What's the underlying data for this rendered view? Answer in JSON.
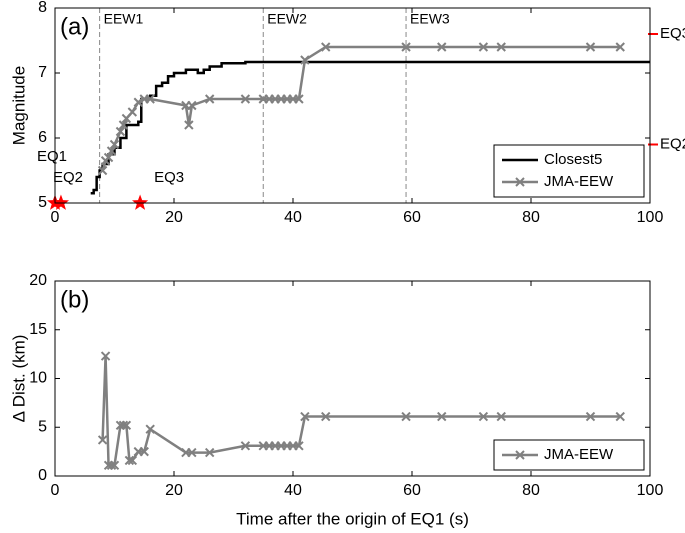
{
  "chart_data": [
    {
      "type": "line",
      "panel_label": "(a)",
      "ylabel": "Magnitude",
      "xlim": [
        0,
        100
      ],
      "xticks": [
        0,
        20,
        40,
        60,
        80,
        100
      ],
      "ylim": [
        5,
        8
      ],
      "yticks": [
        5,
        6,
        7,
        8
      ],
      "legend": "lower right",
      "series": [
        {
          "name": "Closest5",
          "color": "#000000",
          "marker": "none",
          "step": true,
          "x": [
            6,
            6.5,
            7,
            7.5,
            8,
            9,
            10,
            11,
            12,
            14,
            14.5,
            16,
            17,
            18,
            19,
            20,
            22,
            24,
            25,
            26,
            28,
            32,
            100
          ],
          "values": [
            5.15,
            5.2,
            5.4,
            5.5,
            5.6,
            5.75,
            5.85,
            6.0,
            6.2,
            6.25,
            6.6,
            6.65,
            6.8,
            6.85,
            6.95,
            7.0,
            7.05,
            7.0,
            7.05,
            7.1,
            7.15,
            7.17,
            7.17
          ]
        },
        {
          "name": "JMA-EEW",
          "color": "#808080",
          "marker": "x",
          "step": false,
          "x": [
            8,
            8.5,
            9,
            9.5,
            10,
            11,
            11.5,
            12,
            13,
            14,
            15,
            16,
            22,
            22.5,
            23,
            26,
            32,
            35,
            36,
            37,
            38,
            39,
            40,
            41,
            42,
            45.5,
            59,
            65,
            72,
            75,
            90,
            95
          ],
          "values": [
            5.5,
            5.65,
            5.7,
            5.8,
            5.9,
            6.1,
            6.2,
            6.3,
            6.4,
            6.55,
            6.6,
            6.6,
            6.5,
            6.2,
            6.5,
            6.6,
            6.6,
            6.6,
            6.6,
            6.6,
            6.6,
            6.6,
            6.6,
            6.6,
            7.2,
            7.4,
            7.4,
            7.4,
            7.4,
            7.4,
            7.4,
            7.4
          ]
        }
      ],
      "vlines": [
        {
          "label": "EEW1",
          "x": 7.5
        },
        {
          "label": "EEW2",
          "x": 35
        },
        {
          "label": "EEW3",
          "x": 59
        }
      ],
      "events": [
        {
          "label": "EQ1",
          "x": 0,
          "y": 5
        },
        {
          "label": "EQ2",
          "x": 1,
          "y": 5
        },
        {
          "label": "EQ3",
          "x": 14.3,
          "y": 5
        }
      ],
      "event_color": "#ff0000",
      "right_markers": [
        {
          "label": "EQ3",
          "y": 7.6
        },
        {
          "label": "EQ2",
          "y": 5.9
        }
      ]
    },
    {
      "type": "line",
      "panel_label": "(b)",
      "ylabel": "Δ Dist. (km)",
      "xlabel": "Time after the origin of EQ1 (s)",
      "xlim": [
        0,
        100
      ],
      "xticks": [
        0,
        20,
        40,
        60,
        80,
        100
      ],
      "ylim": [
        0,
        20
      ],
      "yticks": [
        0,
        5,
        10,
        15,
        20
      ],
      "legend": "lower right",
      "series": [
        {
          "name": "JMA-EEW",
          "color": "#808080",
          "marker": "x",
          "step": false,
          "x": [
            8,
            8.5,
            9,
            9.5,
            10,
            11,
            11.5,
            12,
            12.5,
            13,
            14,
            15,
            16,
            22,
            23,
            26,
            32,
            35,
            36,
            37,
            38,
            39,
            40,
            41,
            42,
            45.5,
            59,
            65,
            72,
            75,
            90,
            95
          ],
          "values": [
            3.7,
            12.3,
            1.1,
            1.1,
            1.1,
            5.2,
            5.2,
            5.2,
            1.6,
            1.6,
            2.5,
            2.5,
            4.8,
            2.4,
            2.4,
            2.4,
            3.1,
            3.1,
            3.1,
            3.1,
            3.1,
            3.1,
            3.1,
            3.1,
            6.1,
            6.1,
            6.1,
            6.1,
            6.1,
            6.1,
            6.1,
            6.1
          ]
        }
      ]
    }
  ]
}
